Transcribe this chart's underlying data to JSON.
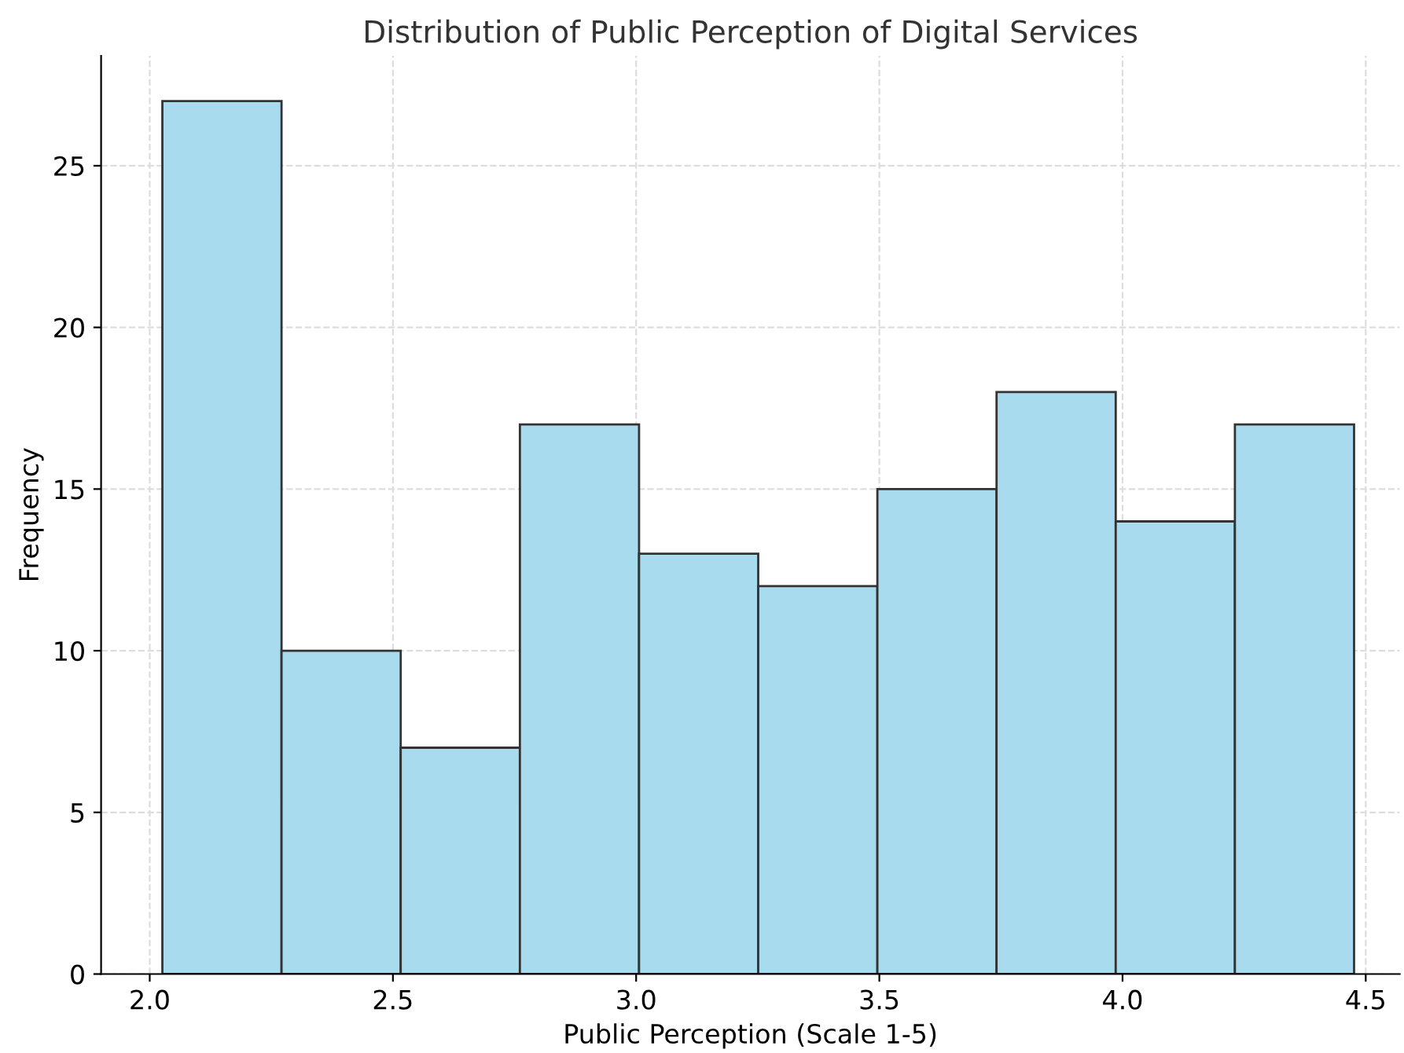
{
  "chart_data": {
    "type": "histogram",
    "title": "Distribution of Public Perception of Digital Services",
    "xlabel": "Public Perception (Scale 1-5)",
    "ylabel": "Frequency",
    "bins": [
      2.026,
      2.271,
      2.516,
      2.761,
      3.006,
      3.251,
      3.496,
      3.741,
      3.986,
      4.231,
      4.476
    ],
    "values": [
      27,
      10,
      7,
      17,
      13,
      12,
      15,
      18,
      14,
      17
    ],
    "color": "#a9dbee",
    "xlim": [
      1.9,
      4.57
    ],
    "xticks": [
      {
        "value": 2.0,
        "label": "2.0"
      },
      {
        "value": 2.5,
        "label": "2.5"
      },
      {
        "value": 3.0,
        "label": "3.0"
      },
      {
        "value": 3.5,
        "label": "3.5"
      },
      {
        "value": 4.0,
        "label": "4.0"
      },
      {
        "value": 4.5,
        "label": "4.5"
      }
    ],
    "ylim": [
      0,
      28.4
    ],
    "yticks": [
      0,
      5,
      10,
      15,
      20,
      25
    ],
    "grid": true
  }
}
